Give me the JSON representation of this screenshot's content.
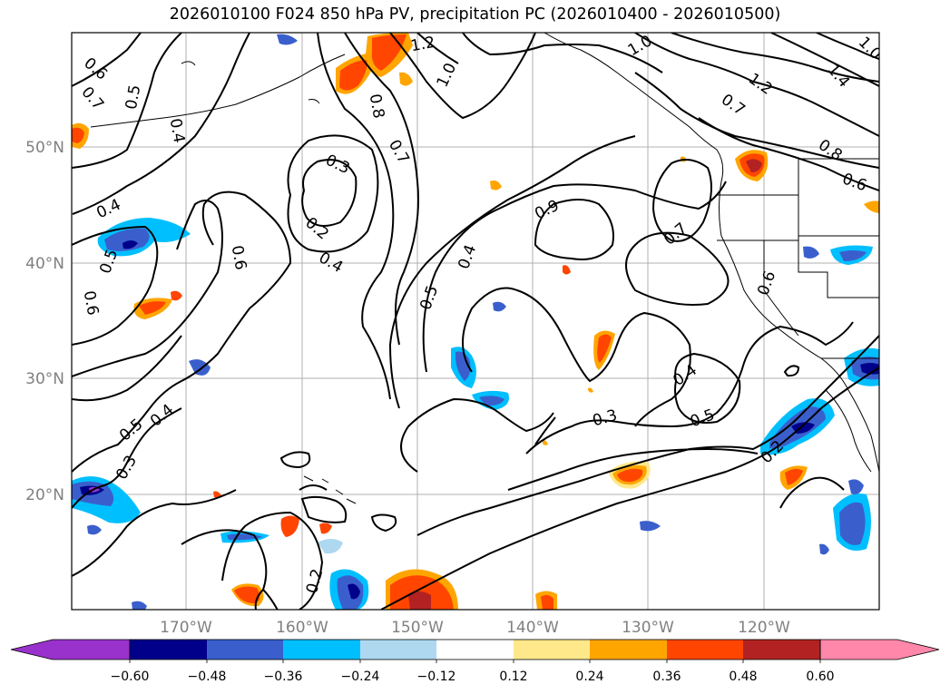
{
  "title": "2026010100 F024 850 hPa PV, precipitation PC (2026010400 - 2026010500)",
  "lat_labels": [
    "50°N",
    "40°N",
    "30°N",
    "20°N"
  ],
  "lon_labels": [
    "170°W",
    "160°W",
    "150°W",
    "140°W",
    "130°W",
    "120°W"
  ],
  "contour_labels": [
    "0.6",
    "0.7",
    "0.5",
    "0.4",
    "1.2",
    "1.0",
    "1.0",
    "1.2",
    "1.4",
    "1.0",
    "0.8",
    "0.7",
    "0.3",
    "0.2",
    "0.4",
    "0.6",
    "0.4",
    "0.5",
    "0.6",
    "0.7",
    "0.7",
    "0.8",
    "0.6",
    "0.4",
    "0.9",
    "0.6",
    "0.5",
    "0.4",
    "0.3",
    "0.4",
    "0.5",
    "0.2",
    "0.3",
    "0.2"
  ],
  "colorbar": {
    "tick_labels": [
      "−0.60",
      "−0.48",
      "−0.36",
      "−0.24",
      "−0.12",
      "0.12",
      "0.24",
      "0.36",
      "0.48",
      "0.60"
    ],
    "colors": [
      "#9932cc",
      "#00008b",
      "#3a5fcd",
      "#00bfff",
      "#add8f0",
      "#ffffff",
      "#ffe88a",
      "#ffa500",
      "#ff4500",
      "#b22222",
      "#ff88aa"
    ]
  }
}
